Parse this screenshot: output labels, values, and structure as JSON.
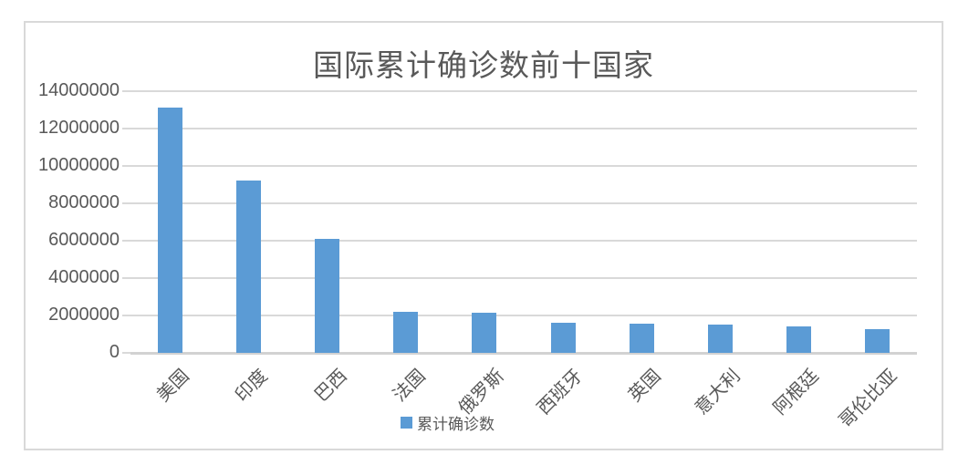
{
  "chart_data": {
    "type": "bar",
    "title": "国际累计确诊数前十国家",
    "categories": [
      "美国",
      "印度",
      "巴西",
      "法国",
      "俄罗斯",
      "西班牙",
      "英国",
      "意大利",
      "阿根廷",
      "哥伦比亚"
    ],
    "series": [
      {
        "name": "累计确诊数",
        "values": [
          13100000,
          9200000,
          6100000,
          2200000,
          2150000,
          1600000,
          1560000,
          1500000,
          1420000,
          1280000
        ]
      }
    ],
    "xlabel": "",
    "ylabel": "",
    "ylim": [
      0,
      14000000
    ],
    "ytick_step": 2000000,
    "yticks": [
      0,
      2000000,
      4000000,
      6000000,
      8000000,
      10000000,
      12000000,
      14000000
    ],
    "ytick_labels": [
      "0",
      "2000000",
      "4000000",
      "6000000",
      "8000000",
      "10000000",
      "12000000",
      "14000000"
    ],
    "grid": true,
    "legend_position": "bottom",
    "x_label_rotation_deg": 45
  },
  "colors": {
    "bar": "#5b9bd5",
    "gridline": "#d9d9d9",
    "axis": "#d2d2d2",
    "text": "#595959",
    "chart_border": "#d9d9d9",
    "background": "#ffffff"
  }
}
